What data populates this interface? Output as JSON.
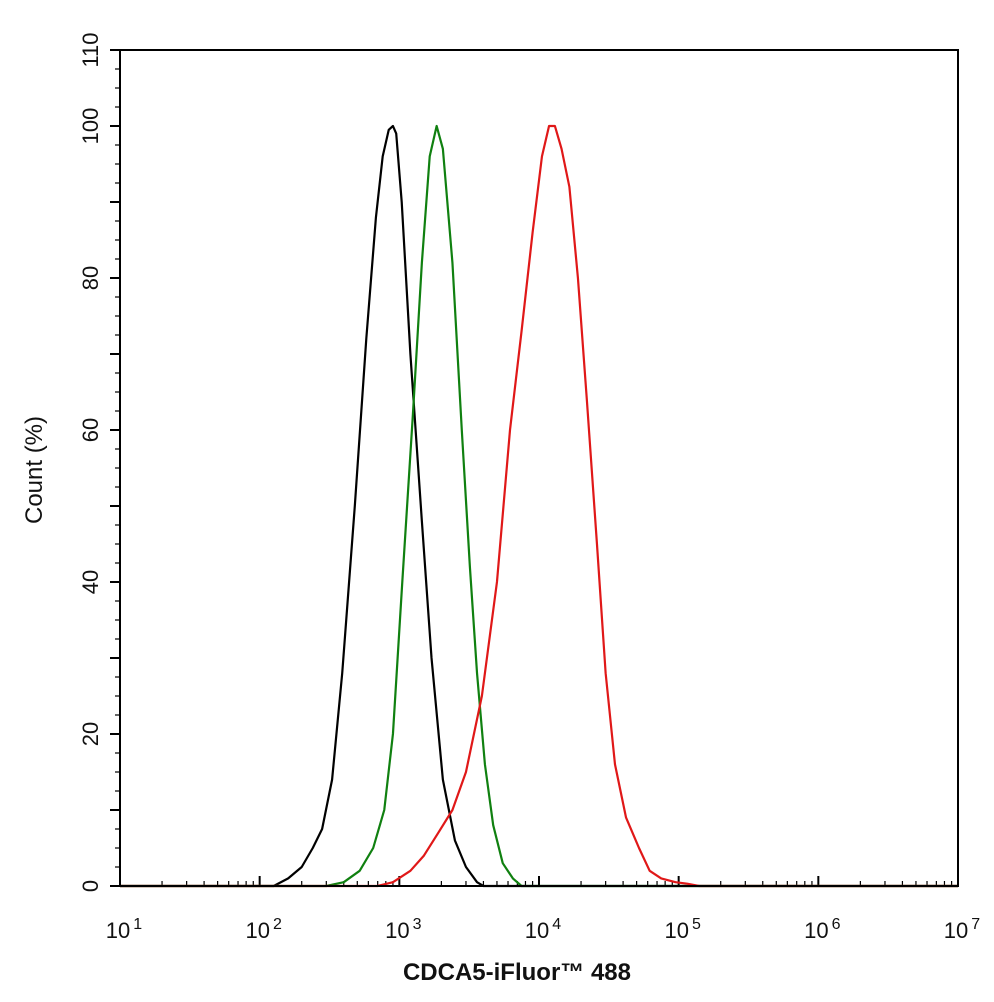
{
  "chart_data": {
    "type": "line",
    "title": "",
    "xlabel": "CDCA5-iFluor™ 488",
    "ylabel": "Count  (%)",
    "xscale": "log",
    "xlim": [
      10,
      10000000
    ],
    "ylim": [
      0,
      110
    ],
    "x_ticks": [
      {
        "base": "10",
        "exp": "1",
        "value": 10
      },
      {
        "base": "10",
        "exp": "2",
        "value": 100
      },
      {
        "base": "10",
        "exp": "3",
        "value": 1000
      },
      {
        "base": "10",
        "exp": "4",
        "value": 10000
      },
      {
        "base": "10",
        "exp": "5",
        "value": 100000
      },
      {
        "base": "10",
        "exp": "6",
        "value": 1000000
      },
      {
        "base": "10",
        "exp": "7",
        "value": 10000000
      }
    ],
    "y_ticks": [
      "0",
      "20",
      "40",
      "60",
      "80",
      "100",
      "110"
    ],
    "grid": false,
    "legend": "none",
    "series": [
      {
        "color": "#000000",
        "points": [
          [
            10,
            0
          ],
          [
            100,
            0
          ],
          [
            126,
            0
          ],
          [
            160,
            1
          ],
          [
            200,
            2.5
          ],
          [
            240,
            5
          ],
          [
            280,
            7.5
          ],
          [
            330,
            14
          ],
          [
            390,
            28
          ],
          [
            480,
            50
          ],
          [
            580,
            72
          ],
          [
            680,
            88
          ],
          [
            760,
            96
          ],
          [
            840,
            99.5
          ],
          [
            900,
            100
          ],
          [
            950,
            99
          ],
          [
            1040,
            90
          ],
          [
            1200,
            70
          ],
          [
            1450,
            48
          ],
          [
            1700,
            30
          ],
          [
            2050,
            14
          ],
          [
            2500,
            6
          ],
          [
            3000,
            2.5
          ],
          [
            3600,
            0.5
          ],
          [
            4000,
            0
          ],
          [
            10000000,
            0
          ]
        ]
      },
      {
        "color": "#108010",
        "points": [
          [
            10,
            0
          ],
          [
            300,
            0
          ],
          [
            400,
            0.5
          ],
          [
            520,
            2
          ],
          [
            650,
            5
          ],
          [
            780,
            10
          ],
          [
            900,
            20
          ],
          [
            1050,
            40
          ],
          [
            1250,
            62
          ],
          [
            1450,
            82
          ],
          [
            1650,
            96
          ],
          [
            1850,
            100
          ],
          [
            2050,
            97
          ],
          [
            2400,
            82
          ],
          [
            2800,
            60
          ],
          [
            3200,
            42
          ],
          [
            3600,
            28
          ],
          [
            4100,
            16
          ],
          [
            4700,
            8
          ],
          [
            5500,
            3
          ],
          [
            6500,
            1
          ],
          [
            7500,
            0
          ],
          [
            10000000,
            0
          ]
        ]
      },
      {
        "color": "#e01818",
        "points": [
          [
            10,
            0
          ],
          [
            700,
            0
          ],
          [
            900,
            0.5
          ],
          [
            1200,
            2
          ],
          [
            1500,
            4
          ],
          [
            1900,
            7
          ],
          [
            2400,
            10
          ],
          [
            3000,
            15
          ],
          [
            3900,
            25
          ],
          [
            5000,
            40
          ],
          [
            6200,
            60
          ],
          [
            7500,
            73
          ],
          [
            9000,
            86
          ],
          [
            10500,
            96
          ],
          [
            11800,
            100
          ],
          [
            13000,
            100
          ],
          [
            14500,
            97
          ],
          [
            16500,
            92
          ],
          [
            19000,
            80
          ],
          [
            22000,
            64
          ],
          [
            26000,
            45
          ],
          [
            30000,
            28
          ],
          [
            35000,
            16
          ],
          [
            42000,
            9
          ],
          [
            52000,
            5
          ],
          [
            62000,
            2
          ],
          [
            75000,
            1
          ],
          [
            95000,
            0.5
          ],
          [
            115000,
            0.3
          ],
          [
            140000,
            0
          ],
          [
            10000000,
            0
          ]
        ]
      }
    ]
  }
}
